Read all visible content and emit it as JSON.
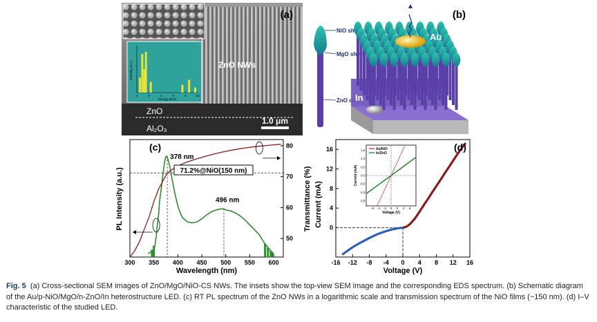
{
  "panel_a": {
    "label": "(a)",
    "nw_label": "ZnO NWs",
    "layer_top": "ZnO",
    "layer_bottom": "Al₂O₃",
    "scale": "1.0 μm",
    "inset": {
      "ylabel": "Intensity (a.u.)",
      "xlabel": "Energy (keV)",
      "ticks": [
        "0",
        "2",
        "4",
        "6",
        "8",
        "10"
      ]
    }
  },
  "panel_b": {
    "label": "(b)",
    "shell_nio": "NiO shell",
    "shell_mgo": "MgO shell",
    "core": "ZnO core",
    "au": "Au",
    "in": "In"
  },
  "chart_data": [
    {
      "panel": "(c)",
      "type": "line",
      "xlabel": "Wavelength (nm)",
      "ylabel_left": "PL Intensity (a.u.)",
      "ylabel_right": "Transmittance (%)",
      "xlim": [
        300,
        620
      ],
      "x_ticks": [
        300,
        350,
        400,
        450,
        500,
        550,
        600
      ],
      "y_right_lim": [
        44,
        82
      ],
      "y_right_ticks": [
        50,
        60,
        70,
        80
      ],
      "annotations": [
        "378 nm",
        "496 nm",
        "71.2%@NiO(150 nm)"
      ],
      "series": [
        {
          "color": "#2e8b2e",
          "x": [
            338,
            345,
            350,
            352,
            355,
            357,
            360,
            362,
            365,
            368,
            370,
            372,
            374,
            376,
            378,
            380,
            383,
            386,
            390,
            395,
            400,
            405,
            410,
            420,
            430,
            440,
            450,
            460,
            470,
            480,
            490,
            496,
            500,
            510,
            520,
            530,
            540,
            550,
            560,
            570,
            575,
            580,
            585,
            590,
            595,
            600
          ],
          "v": [
            0.02,
            0.04,
            0.06,
            0.1,
            0.2,
            0.3,
            0.42,
            0.55,
            0.66,
            0.78,
            0.86,
            0.93,
            0.98,
            1.0,
            0.99,
            0.96,
            0.9,
            0.82,
            0.72,
            0.6,
            0.5,
            0.43,
            0.38,
            0.34,
            0.33,
            0.34,
            0.37,
            0.41,
            0.44,
            0.46,
            0.47,
            0.47,
            0.46,
            0.45,
            0.43,
            0.4,
            0.36,
            0.31,
            0.26,
            0.21,
            0.17,
            0.13,
            0.1,
            0.07,
            0.04,
            0.02
          ]
        },
        {
          "color": "#8b1a1a",
          "x": [
            300,
            310,
            320,
            330,
            340,
            350,
            360,
            370,
            378,
            390,
            400,
            420,
            440,
            460,
            480,
            500,
            520,
            540,
            560,
            580,
            600,
            615
          ],
          "y": [
            44,
            46,
            49,
            53,
            57,
            62,
            66,
            69,
            71.2,
            72.5,
            73.5,
            74.8,
            75.8,
            76.7,
            77.5,
            78.2,
            78.8,
            79.3,
            79.7,
            80.0,
            80.3,
            80.5
          ]
        }
      ]
    },
    {
      "panel": "(d)",
      "type": "line",
      "xlabel": "Voltage (V)",
      "ylabel": "Current (mA)",
      "xlim": [
        -16,
        16
      ],
      "ylim": [
        -6,
        18
      ],
      "x_ticks": [
        -16,
        -12,
        -8,
        -4,
        0,
        4,
        8,
        12,
        16
      ],
      "y_ticks": [
        0,
        4,
        8,
        12,
        16
      ],
      "series": [
        {
          "color": "#2a5fbf",
          "x": [
            -14.5,
            -13,
            -12,
            -10,
            -8,
            -6,
            -4,
            -3,
            -2,
            -1,
            0
          ],
          "y": [
            -5.5,
            -4.6,
            -4.0,
            -3.0,
            -2.1,
            -1.3,
            -0.7,
            -0.45,
            -0.25,
            -0.1,
            0
          ]
        },
        {
          "color": "#8b1a1a",
          "x": [
            0,
            0.5,
            1,
            1.5,
            2,
            3,
            4,
            5,
            6,
            7,
            8,
            9,
            10,
            11,
            12,
            13,
            14,
            15
          ],
          "y": [
            0,
            0.1,
            0.3,
            0.6,
            1.0,
            2.0,
            3.3,
            4.6,
            5.9,
            7.2,
            8.5,
            9.8,
            11.1,
            12.4,
            13.7,
            15.0,
            16.2,
            17.3
          ]
        }
      ],
      "inset": {
        "xlabel": "Voltage (V)",
        "ylabel": "Current (mA)",
        "xlim": [
          -8,
          8
        ],
        "ylim": [
          -1.8,
          1.8
        ],
        "x_ticks": [
          -6,
          -4,
          -2,
          0,
          2,
          4,
          6
        ],
        "y_ticks": [
          -1.5,
          -1.0,
          -0.5,
          0.0,
          0.5,
          1.0,
          1.5
        ],
        "series": [
          {
            "name": "Au/NiO",
            "color": "#d23a3a",
            "x": [
              -8,
              8
            ],
            "y": [
              -3.2,
              3.2
            ]
          },
          {
            "name": "In/ZnO",
            "color": "#2e8b2e",
            "x": [
              -8,
              8
            ],
            "y": [
              -1.08,
              1.08
            ]
          }
        ]
      }
    }
  ],
  "caption": {
    "fig": "Fig. 5",
    "text": "(a) Cross-sectional SEM images of ZnO/MgO/NiO-CS NWs. The insets show the top-view SEM image and the corresponding EDS spectrum. (b) Schematic diagram of the Au/p-NiO/MgO/n-ZnO/In heterostructure LED. (c) RT PL spectrum of the ZnO NWs in a logarithmic scale and transmission spectrum of the NiO films (~150 nm). (d) I–V characteristic of the studied LED."
  }
}
